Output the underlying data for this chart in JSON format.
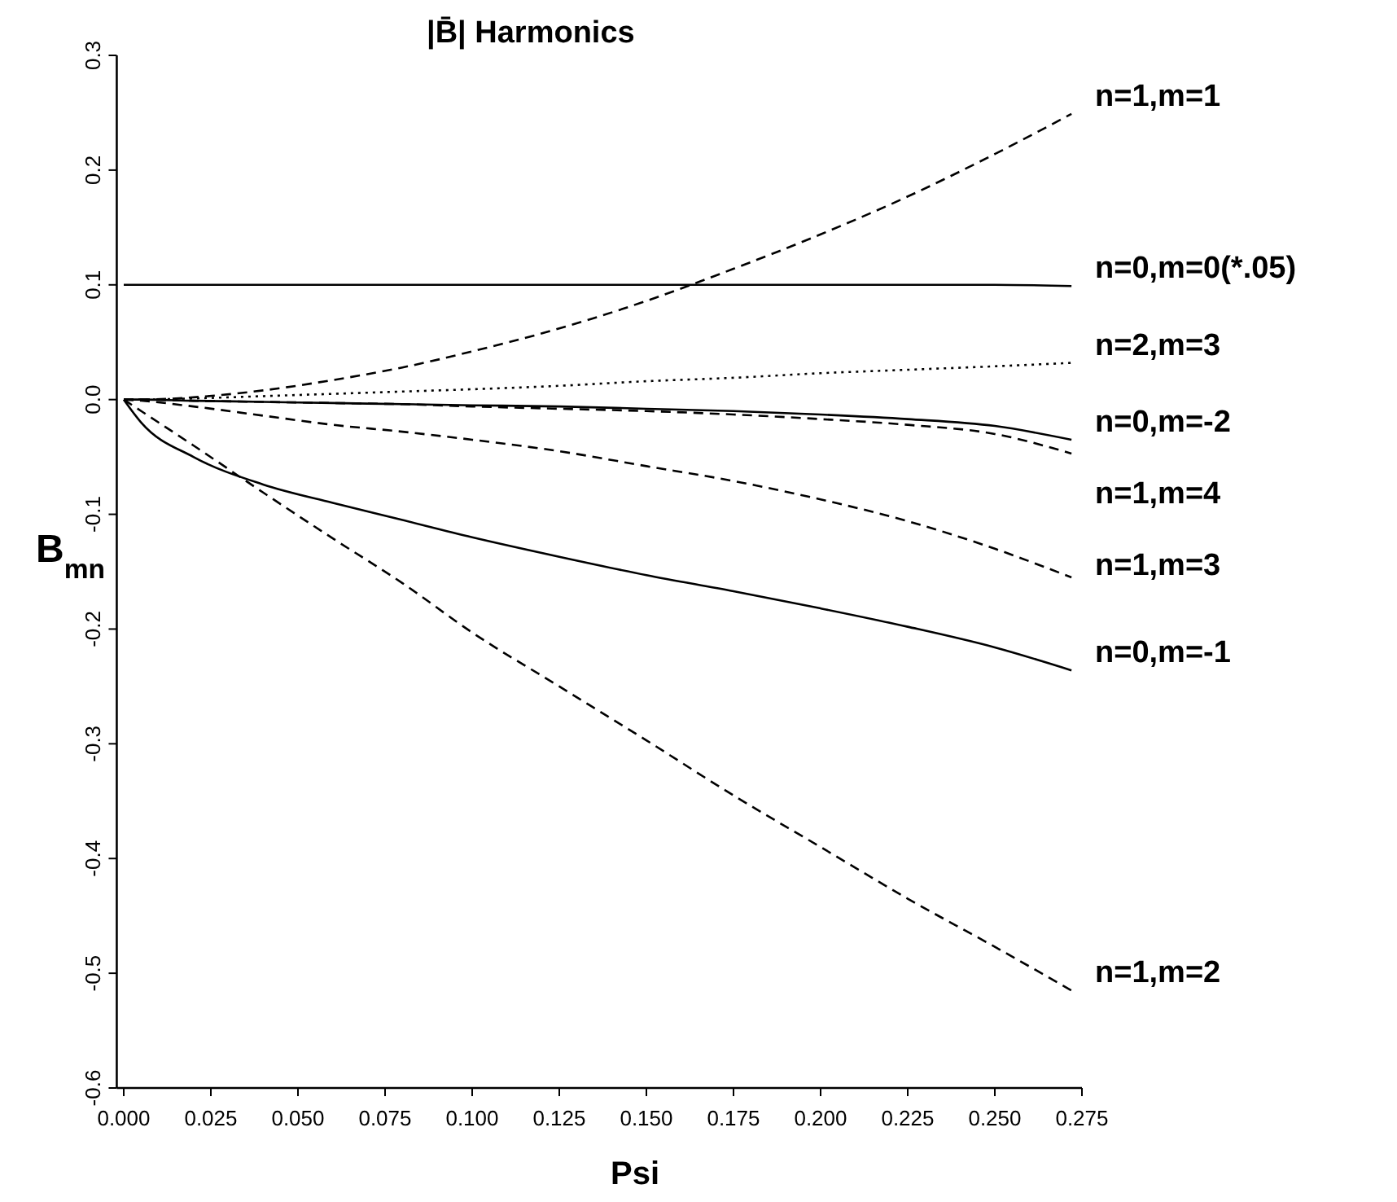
{
  "chart_data": {
    "type": "line",
    "title": "|B̄| Harmonics",
    "xlabel": "Psi",
    "ylabel": "B$_{mn}$",
    "x": [
      0,
      0.005,
      0.02,
      0.04,
      0.06,
      0.08,
      0.1,
      0.125,
      0.15,
      0.175,
      0.2,
      0.225,
      0.25,
      0.272
    ],
    "xlim": [
      -0.002,
      0.275
    ],
    "xticks": [
      {
        "value": 0,
        "label": "0.000"
      },
      {
        "value": 0.025,
        "label": "0.025"
      },
      {
        "value": 0.05,
        "label": "0.050"
      },
      {
        "value": 0.075,
        "label": "0.075"
      },
      {
        "value": 0.1,
        "label": "0.100"
      },
      {
        "value": 0.125,
        "label": "0.125"
      },
      {
        "value": 0.15,
        "label": "0.150"
      },
      {
        "value": 0.175,
        "label": "0.175"
      },
      {
        "value": 0.2,
        "label": "0.200"
      },
      {
        "value": 0.225,
        "label": "0.225"
      },
      {
        "value": 0.25,
        "label": "0.250"
      },
      {
        "value": 0.275,
        "label": "0.275"
      }
    ],
    "ylim": [
      -0.6,
      0.3
    ],
    "yticks": [
      {
        "value": -0.6,
        "label": "-0.6"
      },
      {
        "value": -0.5,
        "label": "-0.5"
      },
      {
        "value": -0.4,
        "label": "-0.4"
      },
      {
        "value": -0.3,
        "label": "-0.3"
      },
      {
        "value": -0.2,
        "label": "-0.2"
      },
      {
        "value": -0.1,
        "label": "-0.1"
      },
      {
        "value": 0,
        "label": "0.0"
      },
      {
        "value": 0.1,
        "label": "0.1"
      },
      {
        "value": 0.2,
        "label": "0.2"
      },
      {
        "value": 0.3,
        "label": "0.3"
      }
    ],
    "grid": false,
    "series": [
      {
        "name": "n=1,m=1",
        "color": "#000000",
        "line_style": "dashed",
        "values": [
          0,
          0,
          0.002,
          0.008,
          0.017,
          0.028,
          0.042,
          0.062,
          0.086,
          0.114,
          0.144,
          0.177,
          0.214,
          0.249
        ]
      },
      {
        "name": "n=0,m=0(*.05)",
        "color": "#000000",
        "line_style": "solid",
        "values": [
          0.1,
          0.1,
          0.1,
          0.1,
          0.1,
          0.1,
          0.1,
          0.1,
          0.1,
          0.1,
          0.1,
          0.1,
          0.1,
          0.099
        ]
      },
      {
        "name": "n=2,m=3",
        "color": "#000000",
        "line_style": "dotted",
        "values": [
          0,
          0,
          0.001,
          0.003,
          0.005,
          0.007,
          0.009,
          0.012,
          0.016,
          0.019,
          0.023,
          0.026,
          0.029,
          0.032
        ]
      },
      {
        "name": "n=0,m=-2",
        "color": "#000000",
        "line_style": "solid",
        "values": [
          0,
          0,
          -0.001,
          -0.002,
          -0.003,
          -0.004,
          -0.005,
          -0.006,
          -0.008,
          -0.01,
          -0.013,
          -0.017,
          -0.023,
          -0.035
        ]
      },
      {
        "name": "n=1,m=4",
        "color": "#000000",
        "line_style": "dashed",
        "values": [
          0,
          0,
          -0.001,
          -0.002,
          -0.003,
          -0.004,
          -0.006,
          -0.008,
          -0.01,
          -0.013,
          -0.017,
          -0.022,
          -0.03,
          -0.047
        ]
      },
      {
        "name": "n=1,m=3",
        "color": "#000000",
        "line_style": "dashed",
        "values": [
          0,
          -0.001,
          -0.006,
          -0.014,
          -0.022,
          -0.028,
          -0.035,
          -0.045,
          -0.058,
          -0.071,
          -0.087,
          -0.106,
          -0.13,
          -0.155
        ]
      },
      {
        "name": "n=0,m=-1",
        "color": "#000000",
        "line_style": "solid",
        "values": [
          0,
          -0.02,
          -0.05,
          -0.074,
          -0.09,
          -0.105,
          -0.12,
          -0.137,
          -0.153,
          -0.167,
          -0.182,
          -0.198,
          -0.216,
          -0.236
        ]
      },
      {
        "name": "n=1,m=2",
        "color": "#000000",
        "line_style": "dashed",
        "values": [
          0,
          -0.01,
          -0.04,
          -0.081,
          -0.121,
          -0.16,
          -0.203,
          -0.25,
          -0.297,
          -0.345,
          -0.39,
          -0.435,
          -0.477,
          -0.515
        ]
      }
    ]
  }
}
